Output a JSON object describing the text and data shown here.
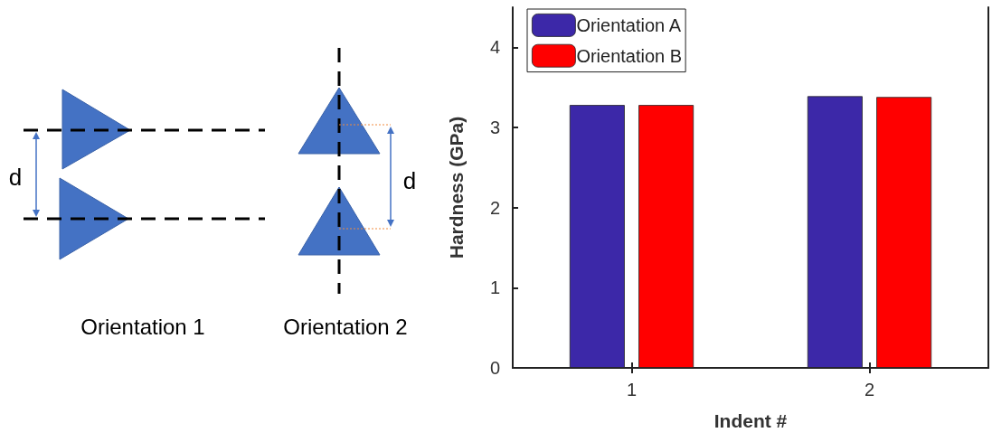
{
  "chart_data": {
    "type": "bar",
    "xlabel": "Indent #",
    "ylabel": "Hardness (GPa)",
    "categories": [
      "1",
      "2"
    ],
    "series": [
      {
        "name": "Orientation A",
        "color": "#3c28a8",
        "values": [
          3.28,
          3.39
        ]
      },
      {
        "name": "Orientation B",
        "color": "#ff0000",
        "values": [
          3.28,
          3.38
        ]
      }
    ],
    "ylim": [
      0,
      4.5
    ],
    "yticks": [
      0,
      1,
      2,
      3,
      4
    ],
    "grid": false,
    "legend": "top left",
    "annotations": [
      "d",
      "d",
      "Orientation 1",
      "Orientation 2"
    ]
  }
}
